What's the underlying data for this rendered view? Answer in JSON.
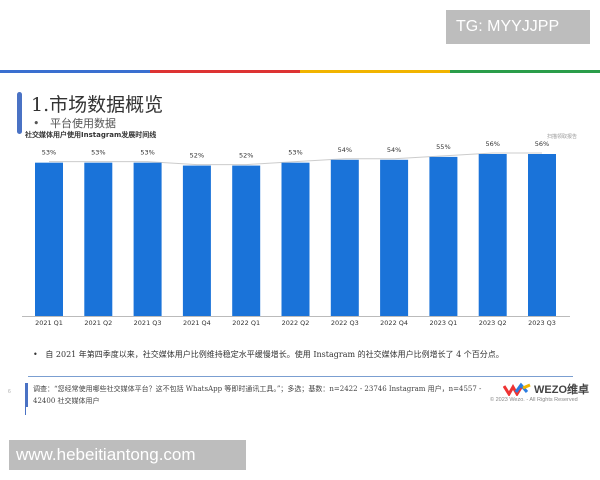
{
  "watermark_top": "TG: MYYJJPP",
  "watermark_bottom": "www.hebeitiantong.com",
  "slide": {
    "title": "1.市场数据概览",
    "bullet": "平台使用数据",
    "scan_label": "扫描领取报告",
    "page_number": "6",
    "note": "自 2021 年第四季度以来，社交媒体用户比例维持稳定水平缓慢增长。使用 Instagram 的社交媒体用户比例增长了 4 个百分点。",
    "footnote": "调查：“您经常使用哪些社交媒体平台？这不包括 WhatsApp 等即时通讯工具。”；多选；基数：n=2422 - 23746 Instagram 用户，n=4557 - 42400 社交媒体用户",
    "logo": "WEZO维卓",
    "copyright": "© 2023 Wezo. - All Rights Reserved"
  },
  "colors": {
    "bar": "#1a73d9",
    "accent": "#4a72c4"
  },
  "chart_data": {
    "type": "bar",
    "title": "社交媒体用户使用Instagram发展时间线",
    "categories": [
      "2021 Q1",
      "2021 Q2",
      "2021 Q3",
      "2021 Q4",
      "2022 Q1",
      "2022 Q2",
      "2022 Q3",
      "2022 Q4",
      "2023 Q1",
      "2023 Q2",
      "2023 Q3"
    ],
    "values": [
      53,
      53,
      53,
      52,
      52,
      53,
      54,
      54,
      55,
      56,
      56
    ],
    "labels": [
      "53%",
      "53%",
      "53%",
      "52%",
      "52%",
      "53%",
      "54%",
      "54%",
      "55%",
      "56%",
      "56%"
    ],
    "ylim": [
      0,
      56
    ],
    "grid": false,
    "trend_line": true
  }
}
